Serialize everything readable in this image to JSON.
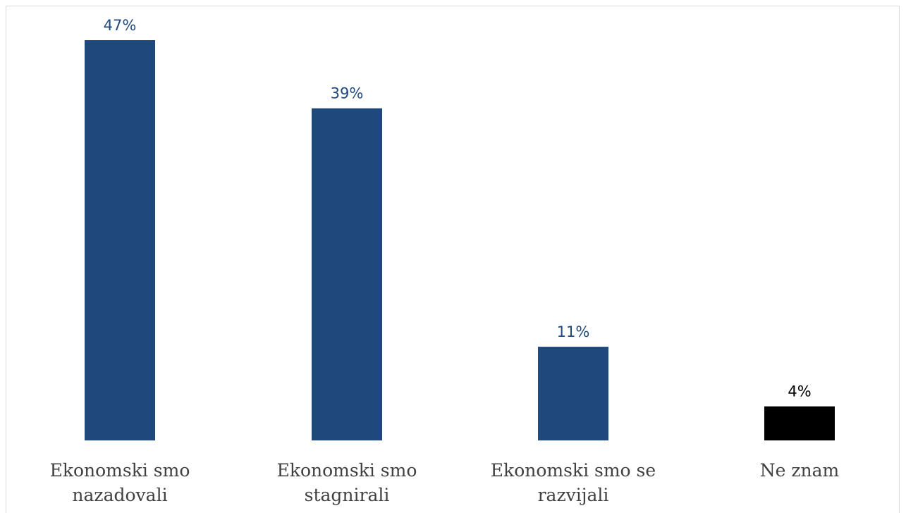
{
  "chart_data": {
    "type": "bar",
    "categories": [
      [
        "Ekonomski smo",
        "nazadovali"
      ],
      [
        "Ekonomski smo",
        "stagnirali"
      ],
      [
        "Ekonomski smo se",
        "razvijali"
      ],
      [
        "Ne znam"
      ]
    ],
    "values": [
      47,
      39,
      11,
      4
    ],
    "value_labels": [
      "47%",
      "39%",
      "11%",
      "4%"
    ],
    "colors": [
      "#1f497d",
      "#1f497d",
      "#1f497d",
      "#000000"
    ],
    "label_colors": [
      "#1f497d",
      "#1f497d",
      "#1f497d",
      "#000000"
    ],
    "title": "",
    "xlabel": "",
    "ylabel": "",
    "ylim": [
      0,
      47
    ],
    "grid": false,
    "legend": "none"
  }
}
